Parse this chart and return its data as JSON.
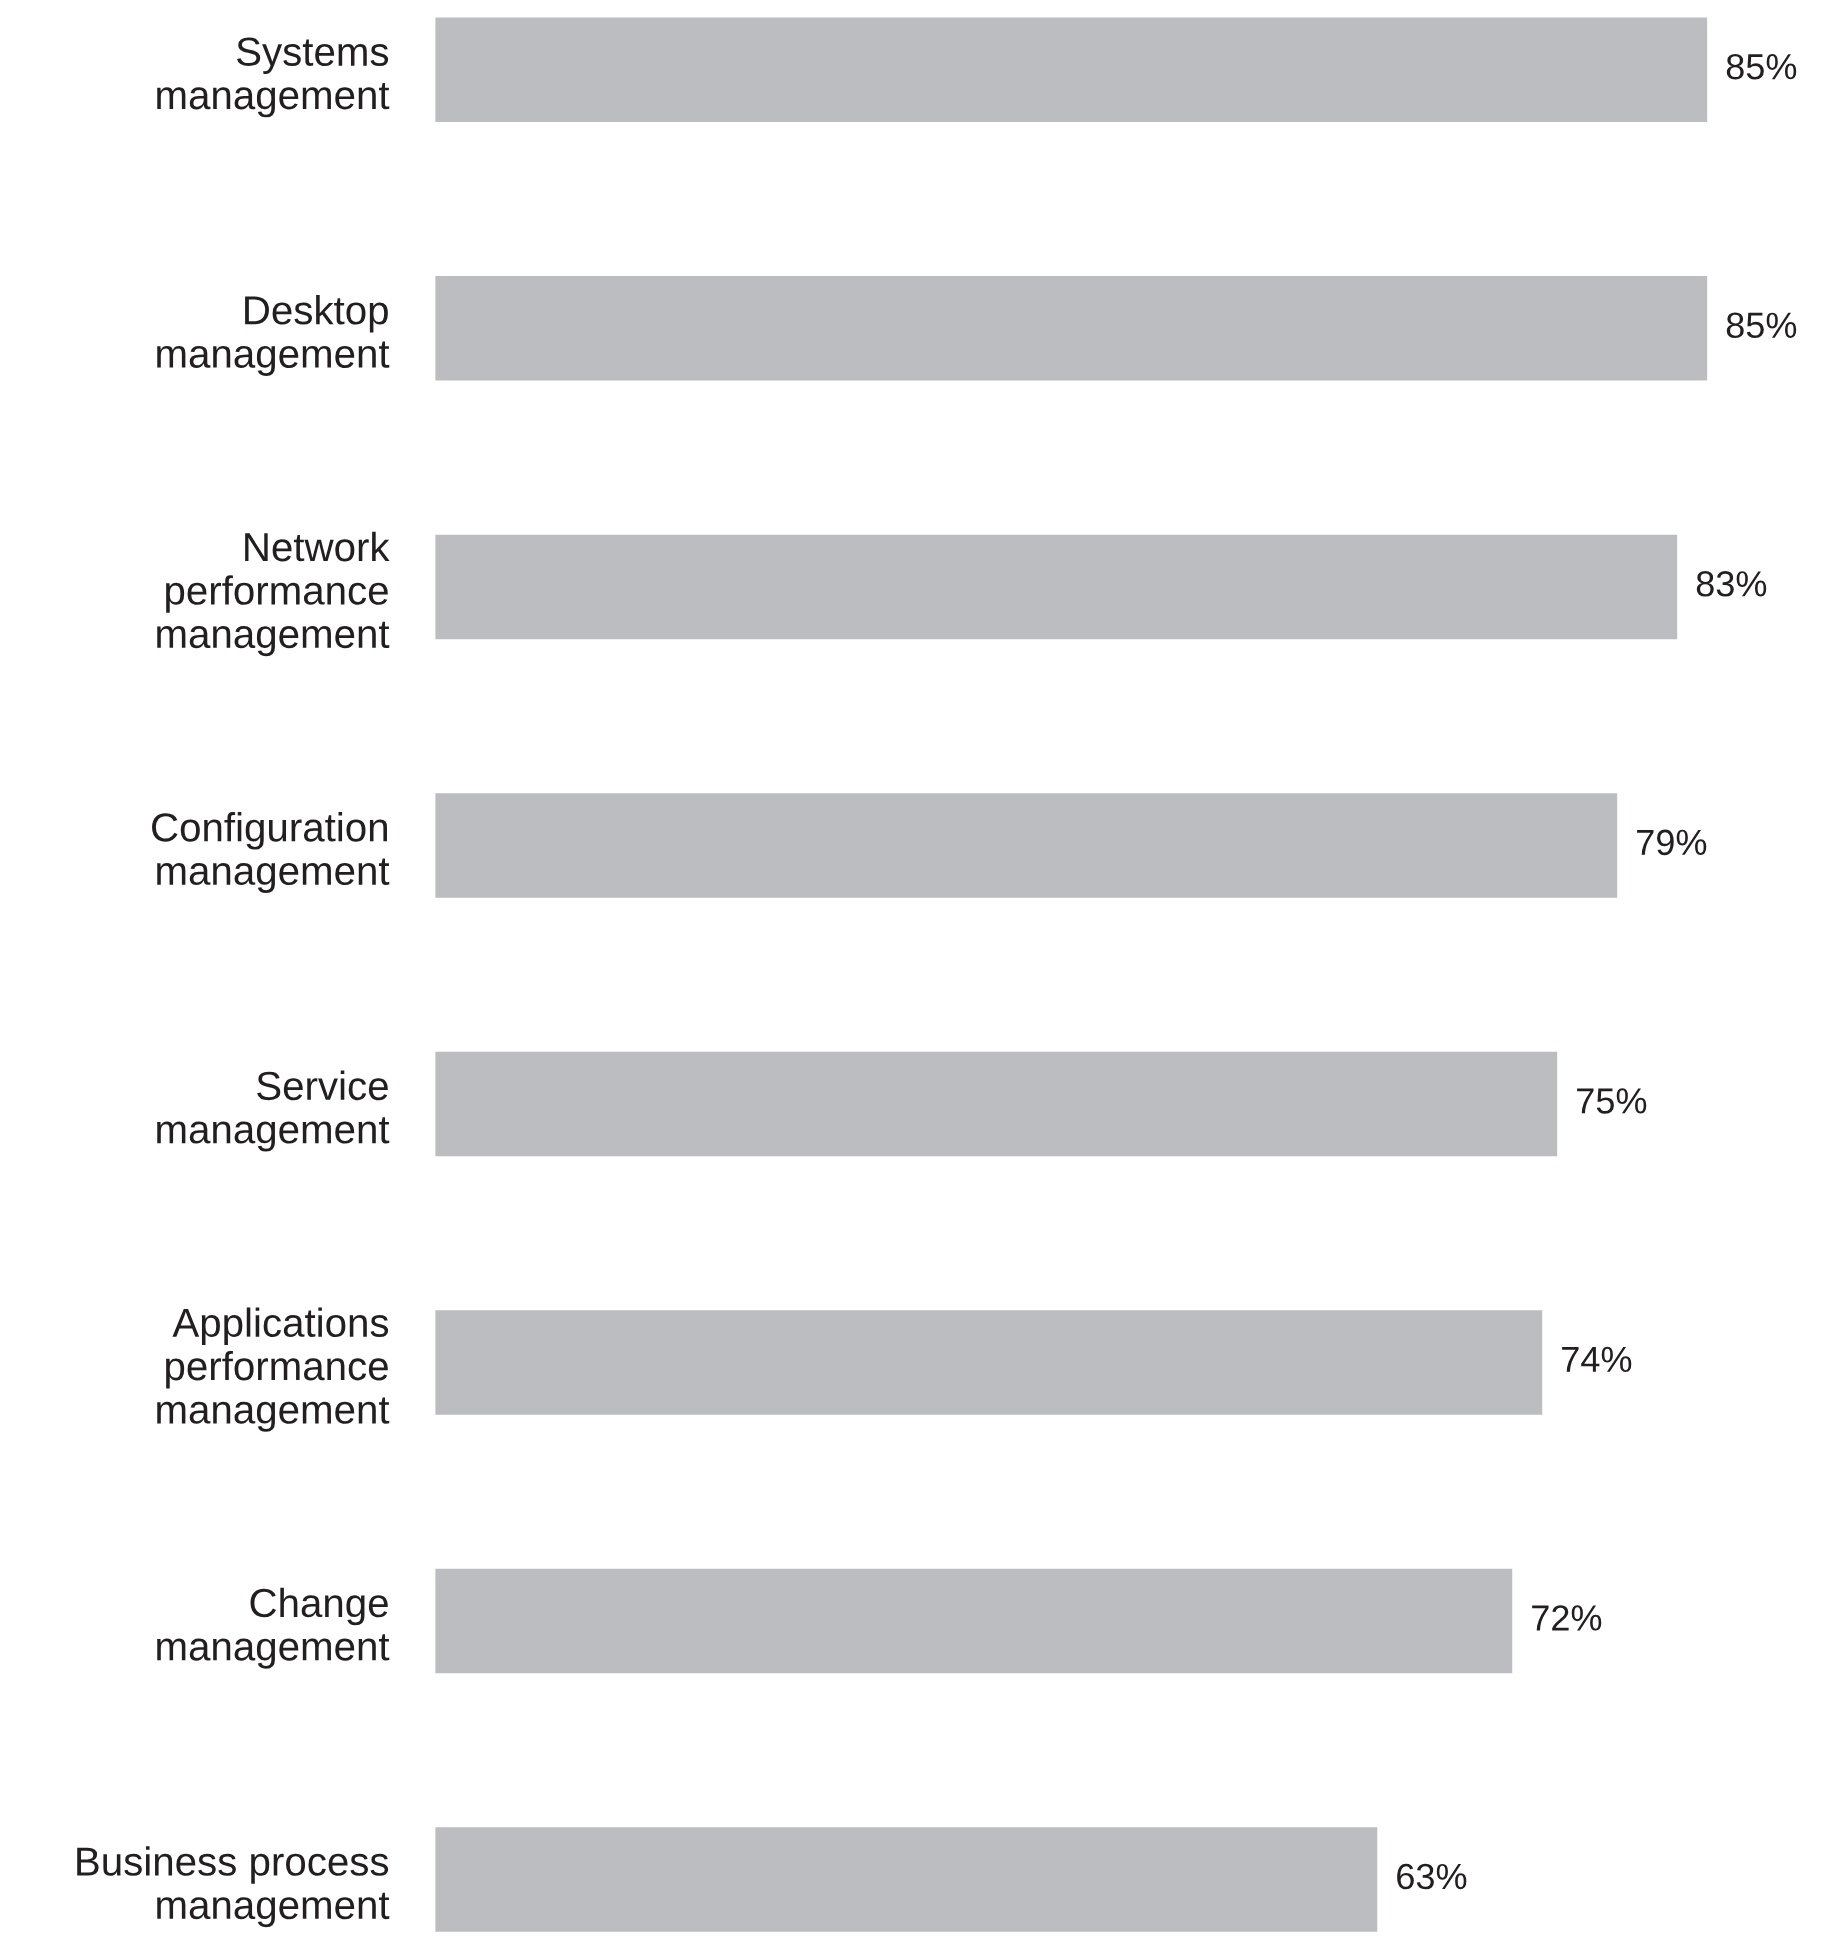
{
  "chart_data": {
    "type": "bar",
    "orientation": "horizontal",
    "categories": [
      "Systems\nmanagement",
      "Desktop\nmanagement",
      "Network\nperformance\nmanagement",
      "Configuration\nmanagement",
      "Service\nmanagement",
      "Applications\nperformance\nmanagement",
      "Change\nmanagement",
      "Business process\nmanagement"
    ],
    "values": [
      85,
      85,
      83,
      79,
      75,
      74,
      72,
      63
    ],
    "value_labels": [
      "85%",
      "85%",
      "83%",
      "79%",
      "75%",
      "74%",
      "72%",
      "63%"
    ],
    "color": "#bcbdc0",
    "grid": false,
    "legend": false
  }
}
